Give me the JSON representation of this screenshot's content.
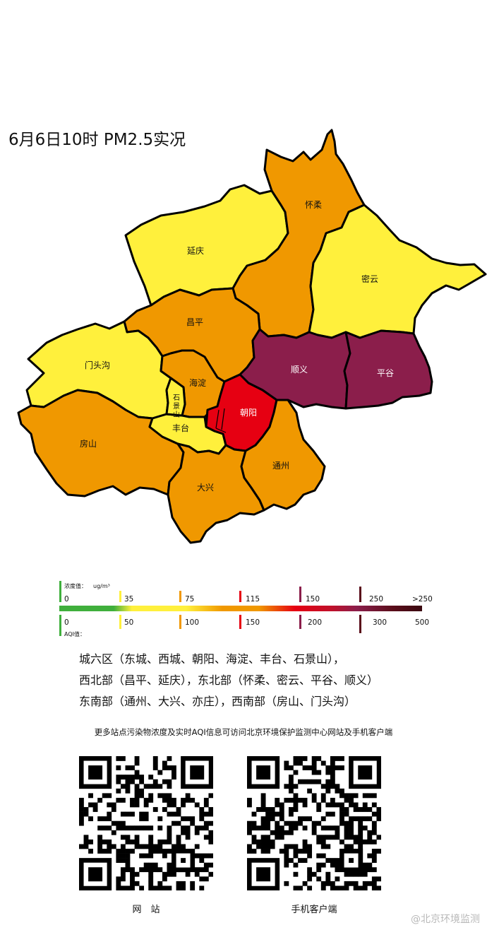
{
  "title": "6月6日10时 PM2.5实况",
  "colors": {
    "good": "#3faf3c",
    "moderate": "#fff03c",
    "light": "#f09800",
    "medium": "#e60012",
    "heavy": "#8b1e4b",
    "severe": "#5a0d1a"
  },
  "districts": [
    {
      "name": "延庆",
      "level": "moderate"
    },
    {
      "name": "怀柔",
      "level": "light"
    },
    {
      "name": "密云",
      "level": "moderate"
    },
    {
      "name": "昌平",
      "level": "light"
    },
    {
      "name": "门头沟",
      "level": "moderate"
    },
    {
      "name": "海淀",
      "level": "light"
    },
    {
      "name": "顺义",
      "level": "heavy"
    },
    {
      "name": "平谷",
      "level": "heavy"
    },
    {
      "name": "石景山",
      "level": "moderate"
    },
    {
      "name": "朝阳",
      "level": "medium"
    },
    {
      "name": "丰台",
      "level": "moderate"
    },
    {
      "name": "房山",
      "level": "light"
    },
    {
      "name": "大兴",
      "level": "light"
    },
    {
      "name": "通州",
      "level": "light"
    }
  ],
  "legend": {
    "conc_label": "浓度值：",
    "conc_unit": "ug/m³",
    "conc_ticks": [
      "0",
      "35",
      "75",
      "115",
      "150",
      "250",
      ">250"
    ],
    "aqi_label": "AQI值：",
    "aqi_ticks": [
      "0",
      "50",
      "100",
      "150",
      "200",
      "300",
      "500"
    ]
  },
  "regions": [
    "城六区（东城、西城、朝阳、海淀、丰台、石景山），",
    "西北部（昌平、延庆），东北部（怀柔、密云、平谷、顺义）",
    "东南部（通州、大兴、亦庄），西南部（房山、门头沟）"
  ],
  "note": "更多站点污染物浓度及实时AQI信息可访问北京环境保护监测中心网站及手机客户端",
  "qr_codes": [
    {
      "caption": "网　站"
    },
    {
      "caption": "手机客户端"
    }
  ],
  "watermark": "@北京环境监测"
}
